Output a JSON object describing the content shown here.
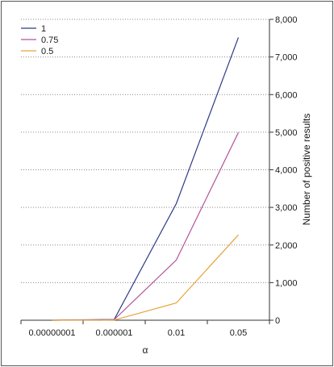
{
  "chart_data": {
    "type": "line",
    "categories": [
      "0.00000001",
      "0.000001",
      "0.01",
      "0.05"
    ],
    "series": [
      {
        "name": "1",
        "color": "#2e3a86",
        "values": [
          0,
          20,
          3100,
          7520
        ]
      },
      {
        "name": "0.75",
        "color": "#b2559d",
        "values": [
          0,
          15,
          1600,
          4990
        ]
      },
      {
        "name": "0.5",
        "color": "#e8a33a",
        "values": [
          0,
          5,
          460,
          2270
        ]
      }
    ],
    "xlabel": "α",
    "ylabel": "Number of positive results",
    "ylim": [
      0,
      8000
    ],
    "yticks": [
      "0",
      "1,000",
      "2,000",
      "3,000",
      "4,000",
      "5,000",
      "6,000",
      "7,000",
      "8,000"
    ],
    "y_axis_side": "right",
    "grid": "horizontal-dotted",
    "legend_position": "top-left"
  }
}
